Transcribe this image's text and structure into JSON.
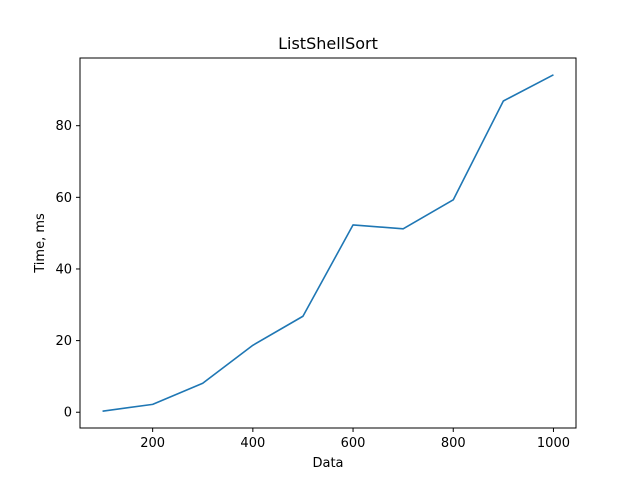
{
  "chart_data": {
    "type": "line",
    "title": "ListShellSort",
    "xlabel": "Data",
    "ylabel": "Time, ms",
    "x": [
      100,
      200,
      300,
      400,
      500,
      600,
      700,
      800,
      900,
      1000
    ],
    "series": [
      {
        "values": [
          0.3,
          2.2,
          8.1,
          18.7,
          26.8,
          52.3,
          51.2,
          59.3,
          86.9,
          94.2
        ],
        "color": "#1f77b4"
      }
    ],
    "xlim": [
      55,
      1045
    ],
    "ylim": [
      -4.4,
      98.9
    ],
    "xticks": [
      200,
      400,
      600,
      800,
      1000
    ],
    "yticks": [
      0,
      20,
      40,
      60,
      80
    ],
    "grid": false,
    "legend": false
  }
}
